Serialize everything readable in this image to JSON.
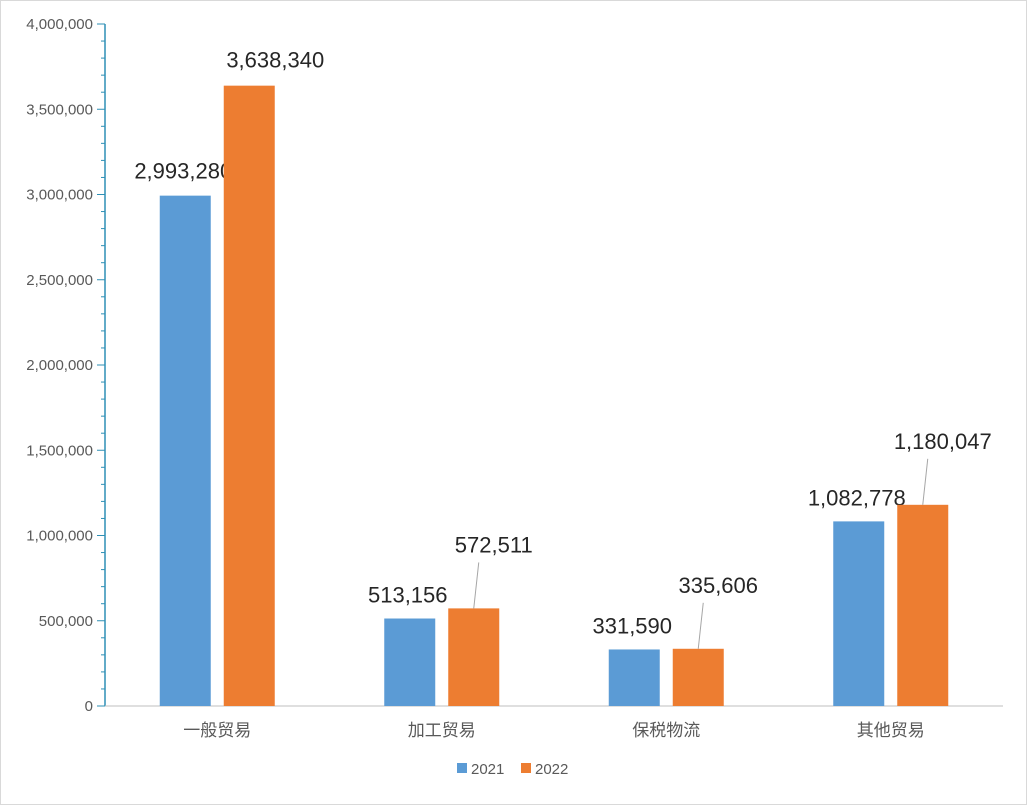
{
  "chart_data": {
    "type": "bar",
    "categories": [
      "一般贸易",
      "加工贸易",
      "保税物流",
      "其他贸易"
    ],
    "series": [
      {
        "name": "2021",
        "color": "#5b9bd5",
        "values": [
          2993280,
          513156,
          331590,
          1082778
        ]
      },
      {
        "name": "2022",
        "color": "#ed7d31",
        "values": [
          3638340,
          572511,
          335606,
          1180047
        ]
      }
    ],
    "data_labels": {
      "2021": [
        "2,993,280",
        "513,156",
        "331,590",
        "1,082,778"
      ],
      "2022": [
        "3,638,340",
        "572,511",
        "335,606",
        "1,180,047"
      ]
    },
    "y_ticks": [
      "0",
      "500,000",
      "1,000,000",
      "1,500,000",
      "2,000,000",
      "2,500,000",
      "3,000,000",
      "3,500,000",
      "4,000,000"
    ],
    "ylim": [
      0,
      4000000
    ],
    "ytick_step": 500000,
    "grid": false,
    "legend_position": "bottom",
    "axis_color": "#2e8fb5"
  }
}
